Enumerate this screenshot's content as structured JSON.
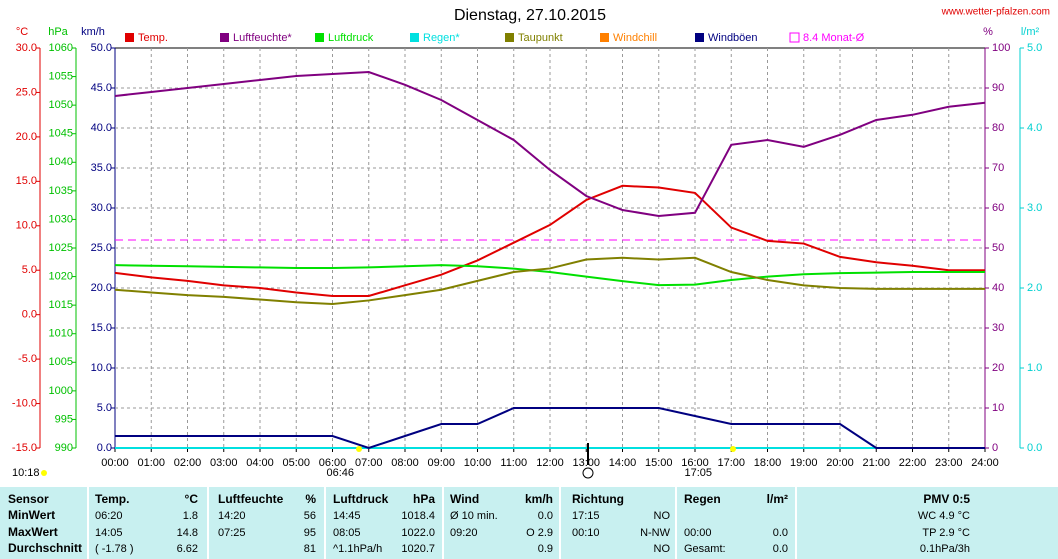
{
  "chart_data": {
    "type": "line",
    "title": "Dienstag, 27.10.2015",
    "source": "www.wetter-pfalzen.com",
    "x": [
      0,
      1,
      2,
      3,
      4,
      5,
      6,
      7,
      8,
      9,
      10,
      11,
      12,
      13,
      14,
      15,
      16,
      17,
      18,
      19,
      20,
      21,
      22,
      23,
      24
    ],
    "xlim": [
      0,
      24
    ],
    "xticks": [
      {
        "value": 0,
        "label": "00:00"
      },
      {
        "value": 1,
        "label": "01:00"
      },
      {
        "value": 2,
        "label": "02:00"
      },
      {
        "value": 3,
        "label": "03:00"
      },
      {
        "value": 4,
        "label": "04:00"
      },
      {
        "value": 5,
        "label": "05:00"
      },
      {
        "value": 6,
        "label": "06:00"
      },
      {
        "value": 7,
        "label": "07:00"
      },
      {
        "value": 8,
        "label": "08:00"
      },
      {
        "value": 9,
        "label": "09:00"
      },
      {
        "value": 10,
        "label": "10:00"
      },
      {
        "value": 11,
        "label": "11:00"
      },
      {
        "value": 12,
        "label": "12:00"
      },
      {
        "value": 13,
        "label": "13:00"
      },
      {
        "value": 14,
        "label": "14:00"
      },
      {
        "value": 15,
        "label": "15:00"
      },
      {
        "value": 16,
        "label": "16:00"
      },
      {
        "value": 17,
        "label": "17:00"
      },
      {
        "value": 18,
        "label": "18:00"
      },
      {
        "value": 19,
        "label": "19:00"
      },
      {
        "value": 20,
        "label": "20:00"
      },
      {
        "value": 21,
        "label": "21:00"
      },
      {
        "value": 22,
        "label": "22:00"
      },
      {
        "value": 23,
        "label": "23:00"
      },
      {
        "value": 24,
        "label": "24:00"
      }
    ],
    "axes": [
      {
        "label": "°C",
        "color": "#e00000",
        "lim": [
          -15,
          30
        ],
        "ticks": [
          {
            "value": -15,
            "label": "-15.0"
          },
          {
            "value": -10,
            "label": "-10.0"
          },
          {
            "value": -5,
            "label": "-5.0"
          },
          {
            "value": 0,
            "label": "0.0"
          },
          {
            "value": 5,
            "label": "5.0"
          },
          {
            "value": 10,
            "label": "10.0"
          },
          {
            "value": 15,
            "label": "15.0"
          },
          {
            "value": 20,
            "label": "20.0"
          },
          {
            "value": 25,
            "label": "25.0"
          },
          {
            "value": 30,
            "label": "30.0"
          }
        ]
      },
      {
        "label": "hPa",
        "color": "#00c000",
        "lim": [
          990,
          1060
        ],
        "ticks": [
          990,
          995,
          1000,
          1005,
          1010,
          1015,
          1020,
          1025,
          1030,
          1035,
          1040,
          1045,
          1050,
          1055,
          1060
        ]
      },
      {
        "label": "km/h",
        "color": "#000080",
        "lim": [
          0,
          50
        ],
        "ticks": [
          {
            "value": 0,
            "label": "0.0"
          },
          {
            "value": 5,
            "label": "5.0"
          },
          {
            "value": 10,
            "label": "10.0"
          },
          {
            "value": 15,
            "label": "15.0"
          },
          {
            "value": 20,
            "label": "20.0"
          },
          {
            "value": 25,
            "label": "25.0"
          },
          {
            "value": 30,
            "label": "30.0"
          },
          {
            "value": 35,
            "label": "35.0"
          },
          {
            "value": 40,
            "label": "40.0"
          },
          {
            "value": 45,
            "label": "45.0"
          },
          {
            "value": 50,
            "label": "50.0"
          }
        ]
      },
      {
        "label": "%",
        "color": "#800080",
        "lim": [
          0,
          100
        ],
        "ticks": [
          0,
          10,
          20,
          30,
          40,
          50,
          60,
          70,
          80,
          90,
          100
        ]
      },
      {
        "label": "l/m²",
        "color": "#00d0d0",
        "lim": [
          0,
          5
        ],
        "ticks": [
          {
            "value": 0,
            "label": "0.0"
          },
          {
            "value": 1,
            "label": "1.0"
          },
          {
            "value": 2,
            "label": "2.0"
          },
          {
            "value": 3,
            "label": "3.0"
          },
          {
            "value": 4,
            "label": "4.0"
          },
          {
            "value": 5,
            "label": "5.0"
          }
        ]
      }
    ],
    "grid": true,
    "series": [
      {
        "name": "Temp.",
        "color": "#e00000",
        "axis": 0,
        "values": [
          4.7,
          4.2,
          3.8,
          3.3,
          3.0,
          2.5,
          2.1,
          2.1,
          3.3,
          4.5,
          6.1,
          8.1,
          10.1,
          12.9,
          14.5,
          14.3,
          13.7,
          9.8,
          8.3,
          8.0,
          6.5,
          5.9,
          5.5,
          5.0,
          5.0
        ]
      },
      {
        "name": "Luftfeuchte*",
        "color": "#800080",
        "axis": 3,
        "values": [
          88,
          89,
          90,
          91,
          92,
          93,
          93.5,
          94,
          90.8,
          87,
          82,
          77,
          69.5,
          63,
          59.5,
          58,
          58.8,
          75.8,
          77,
          75.3,
          78.3,
          82,
          83.3,
          85.3,
          86.3
        ]
      },
      {
        "name": "Luftdruck",
        "color": "#00e000",
        "axis": 1,
        "values": [
          1022.0,
          1021.9,
          1021.8,
          1021.7,
          1021.6,
          1021.5,
          1021.5,
          1021.6,
          1021.8,
          1022.0,
          1021.8,
          1021.4,
          1020.8,
          1020.0,
          1019.2,
          1018.5,
          1018.6,
          1019.4,
          1020.0,
          1020.4,
          1020.6,
          1020.7,
          1020.8,
          1020.8,
          1020.8
        ]
      },
      {
        "name": "Regen*",
        "color": "#00e0e0",
        "axis": 4,
        "values": [
          0,
          0,
          0,
          0,
          0,
          0,
          0,
          0,
          0,
          0,
          0,
          0,
          0,
          0,
          0,
          0,
          0,
          0,
          0,
          0,
          0,
          0,
          0,
          0,
          0
        ]
      },
      {
        "name": "Taupunkt",
        "color": "#808000",
        "axis": 0,
        "values": [
          2.8,
          2.5,
          2.2,
          2.0,
          1.7,
          1.4,
          1.2,
          1.6,
          2.2,
          2.8,
          3.8,
          4.8,
          5.2,
          6.2,
          6.4,
          6.2,
          6.4,
          4.8,
          3.9,
          3.3,
          3.0,
          2.9,
          2.9,
          2.9,
          2.9
        ]
      },
      {
        "name": "Windchill",
        "color": "#ff8000",
        "axis": 0,
        "values": [
          null,
          null,
          null,
          null,
          null,
          null,
          null,
          null,
          null,
          null,
          null,
          null,
          null,
          null,
          null,
          null,
          null,
          null,
          null,
          null,
          null,
          null,
          null,
          null,
          null
        ]
      },
      {
        "name": "Windböen",
        "color": "#000080",
        "axis": 2,
        "values": [
          1.5,
          1.5,
          1.5,
          1.5,
          1.5,
          1.5,
          1.5,
          0,
          1.5,
          3,
          3,
          5,
          5,
          5,
          5,
          5,
          4,
          3,
          3,
          3,
          3,
          0,
          0,
          0,
          0
        ]
      }
    ],
    "reference": {
      "name": "8.4 Monat-Ø",
      "value": 8.4,
      "color": "#ff00ff",
      "axis": 0
    },
    "annotations": [
      "10:18",
      "06:46",
      "17:05"
    ]
  },
  "table": {
    "header": [
      "Sensor",
      "Temp.",
      "°C",
      "Luftfeuchte",
      "%",
      "Luftdruck",
      "hPa",
      "Wind",
      "km/h",
      "Richtung",
      null,
      "Regen",
      "l/m²",
      "PMV 0:5"
    ],
    "rows": [
      [
        "MinWert",
        "06:20",
        "1.8",
        "14:20",
        "56",
        "14:45",
        "1018.4",
        "Ø 10 min.",
        "0.0",
        "17:15",
        "NO",
        null,
        null,
        "WC 4.9 °C"
      ],
      [
        "MaxWert",
        "14:05",
        "14.8",
        "07:25",
        "95",
        "08:05",
        "1022.0",
        "09:20",
        "O 2.9",
        "00:10",
        "N-NW",
        "00:00",
        "0.0",
        "TP 2.9 °C"
      ],
      [
        "Durchschnitt",
        "( -1.78 )",
        "6.62",
        null,
        "81",
        "^1.1hPa/h",
        "1020.7",
        null,
        "0.9",
        null,
        "NO",
        "Gesamt:",
        "0.0",
        "0.1hPa/3h"
      ]
    ]
  }
}
